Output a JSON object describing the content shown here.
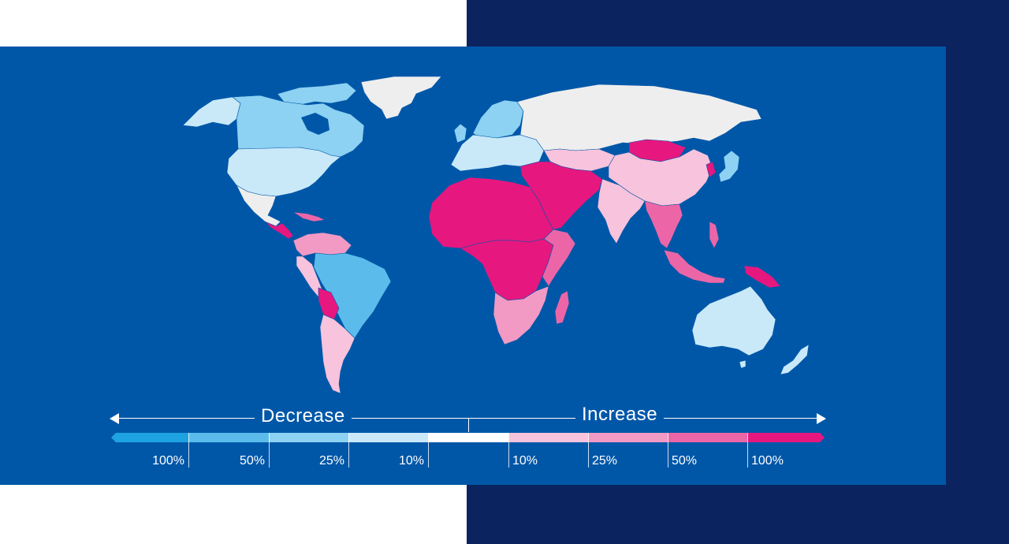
{
  "legend": {
    "decrease_label": "Decrease",
    "increase_label": "Increase",
    "ticks": [
      "100%",
      "50%",
      "25%",
      "10%",
      "10%",
      "25%",
      "50%",
      "100%"
    ],
    "scale_colors": [
      "#1ea2e1",
      "#5bbcec",
      "#8dd1f3",
      "#c9e9f9",
      "#ffffff",
      "#f8c3dc",
      "#f29ac4",
      "#ec66a7",
      "#e6177f"
    ]
  },
  "map": {
    "ocean_color": "#0057a8",
    "no_data_color": "#eeeeee",
    "region_classes": [
      {
        "region": "Greenland",
        "class": "no-data"
      },
      {
        "region": "Canada",
        "class": "decrease-50"
      },
      {
        "region": "United States",
        "class": "decrease-10"
      },
      {
        "region": "Mexico",
        "class": "no-data"
      },
      {
        "region": "Central America",
        "class": "increase-100"
      },
      {
        "region": "Brazil",
        "class": "decrease-50"
      },
      {
        "region": "Bolivia",
        "class": "increase-100"
      },
      {
        "region": "Southern South America",
        "class": "increase-10"
      },
      {
        "region": "Russia",
        "class": "no-data"
      },
      {
        "region": "Northern Europe",
        "class": "decrease-25"
      },
      {
        "region": "Western Europe",
        "class": "decrease-10"
      },
      {
        "region": "North Africa",
        "class": "increase-100"
      },
      {
        "region": "Central Africa",
        "class": "increase-100"
      },
      {
        "region": "East Africa",
        "class": "increase-50"
      },
      {
        "region": "Southern Africa",
        "class": "increase-50"
      },
      {
        "region": "Madagascar",
        "class": "increase-50"
      },
      {
        "region": "Middle East",
        "class": "increase-100"
      },
      {
        "region": "Mongolia",
        "class": "increase-100"
      },
      {
        "region": "China",
        "class": "increase-10"
      },
      {
        "region": "India",
        "class": "increase-10"
      },
      {
        "region": "Southeast Asia",
        "class": "increase-50"
      },
      {
        "region": "Japan",
        "class": "decrease-25"
      },
      {
        "region": "Indonesia",
        "class": "increase-50"
      },
      {
        "region": "Papua New Guinea",
        "class": "increase-100"
      },
      {
        "region": "Australia",
        "class": "decrease-10"
      },
      {
        "region": "New Zealand",
        "class": "decrease-10"
      }
    ]
  }
}
